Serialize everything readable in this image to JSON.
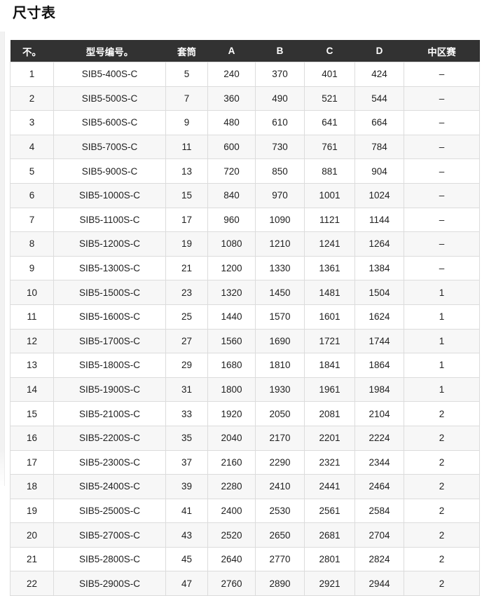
{
  "page": {
    "title": "尺寸表"
  },
  "colors": {
    "header_bg": "#323232",
    "header_text": "#ffffff",
    "row_alt_bg": "#f7f7f7",
    "border": "#dcdcdc",
    "text": "#212121"
  },
  "table": {
    "columns": [
      {
        "key": "no",
        "label": "不。"
      },
      {
        "key": "model",
        "label": "型号编号。"
      },
      {
        "key": "sleeve",
        "label": "套筒"
      },
      {
        "key": "a",
        "label": "A"
      },
      {
        "key": "b",
        "label": "B"
      },
      {
        "key": "c",
        "label": "C"
      },
      {
        "key": "d",
        "label": "D"
      },
      {
        "key": "mid",
        "label": "中区赛"
      }
    ],
    "rows": [
      [
        "1",
        "SIB5-400S-C",
        "5",
        "240",
        "370",
        "401",
        "424",
        "–"
      ],
      [
        "2",
        "SIB5-500S-C",
        "7",
        "360",
        "490",
        "521",
        "544",
        "–"
      ],
      [
        "3",
        "SIB5-600S-C",
        "9",
        "480",
        "610",
        "641",
        "664",
        "–"
      ],
      [
        "4",
        "SIB5-700S-C",
        "11",
        "600",
        "730",
        "761",
        "784",
        "–"
      ],
      [
        "5",
        "SIB5-900S-C",
        "13",
        "720",
        "850",
        "881",
        "904",
        "–"
      ],
      [
        "6",
        "SIB5-1000S-C",
        "15",
        "840",
        "970",
        "1001",
        "1024",
        "–"
      ],
      [
        "7",
        "SIB5-1100S-C",
        "17",
        "960",
        "1090",
        "1121",
        "1144",
        "–"
      ],
      [
        "8",
        "SIB5-1200S-C",
        "19",
        "1080",
        "1210",
        "1241",
        "1264",
        "–"
      ],
      [
        "9",
        "SIB5-1300S-C",
        "21",
        "1200",
        "1330",
        "1361",
        "1384",
        "–"
      ],
      [
        "10",
        "SIB5-1500S-C",
        "23",
        "1320",
        "1450",
        "1481",
        "1504",
        "1"
      ],
      [
        "11",
        "SIB5-1600S-C",
        "25",
        "1440",
        "1570",
        "1601",
        "1624",
        "1"
      ],
      [
        "12",
        "SIB5-1700S-C",
        "27",
        "1560",
        "1690",
        "1721",
        "1744",
        "1"
      ],
      [
        "13",
        "SIB5-1800S-C",
        "29",
        "1680",
        "1810",
        "1841",
        "1864",
        "1"
      ],
      [
        "14",
        "SIB5-1900S-C",
        "31",
        "1800",
        "1930",
        "1961",
        "1984",
        "1"
      ],
      [
        "15",
        "SIB5-2100S-C",
        "33",
        "1920",
        "2050",
        "2081",
        "2104",
        "2"
      ],
      [
        "16",
        "SIB5-2200S-C",
        "35",
        "2040",
        "2170",
        "2201",
        "2224",
        "2"
      ],
      [
        "17",
        "SIB5-2300S-C",
        "37",
        "2160",
        "2290",
        "2321",
        "2344",
        "2"
      ],
      [
        "18",
        "SIB5-2400S-C",
        "39",
        "2280",
        "2410",
        "2441",
        "2464",
        "2"
      ],
      [
        "19",
        "SIB5-2500S-C",
        "41",
        "2400",
        "2530",
        "2561",
        "2584",
        "2"
      ],
      [
        "20",
        "SIB5-2700S-C",
        "43",
        "2520",
        "2650",
        "2681",
        "2704",
        "2"
      ],
      [
        "21",
        "SIB5-2800S-C",
        "45",
        "2640",
        "2770",
        "2801",
        "2824",
        "2"
      ],
      [
        "22",
        "SIB5-2900S-C",
        "47",
        "2760",
        "2890",
        "2921",
        "2944",
        "2"
      ]
    ]
  }
}
